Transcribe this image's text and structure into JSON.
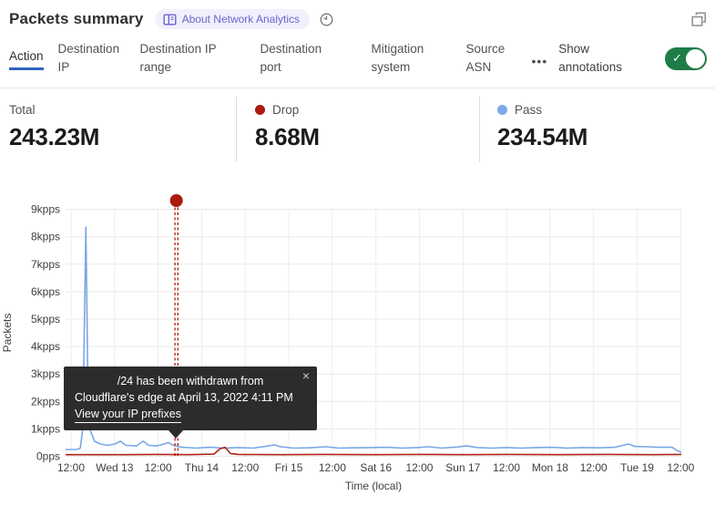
{
  "header": {
    "title": "Packets summary",
    "badge_label": "About Network Analytics",
    "badge_color": "#6b66cf"
  },
  "tabs": {
    "items": [
      {
        "id": "action",
        "label": "Action",
        "active": true
      },
      {
        "id": "destination-ip",
        "label": "Destination IP",
        "active": false
      },
      {
        "id": "destination-ip-range",
        "label": "Destination IP range",
        "active": false
      },
      {
        "id": "destination-port",
        "label": "Destination port",
        "active": false
      },
      {
        "id": "mitigation-system",
        "label": "Mitigation system",
        "active": false
      },
      {
        "id": "source-asn",
        "label": "Source ASN",
        "active": false
      }
    ],
    "more_label": "•••",
    "annotations_label": "Show annotations",
    "toggle_on": true,
    "toggle_color": "#1e7c46",
    "toggle_check": "✓"
  },
  "stats": {
    "total": {
      "label": "Total",
      "value": "243.23M"
    },
    "drop": {
      "label": "Drop",
      "value": "8.68M",
      "color": "#ad1a10"
    },
    "pass": {
      "label": "Pass",
      "value": "234.54M",
      "color": "#7caae8"
    }
  },
  "chart_data": {
    "type": "line",
    "ylabel": "Packets",
    "xlabel": "Time (local)",
    "ylim": [
      0,
      9
    ],
    "y_unit": "kpps",
    "grid": true,
    "y_ticks": [
      "0pps",
      "1kpps",
      "2kpps",
      "3kpps",
      "4kpps",
      "5kpps",
      "6kpps",
      "7kpps",
      "8kpps",
      "9kpps"
    ],
    "x_ticks": [
      "12:00",
      "Wed 13",
      "12:00",
      "Thu 14",
      "12:00",
      "Fri 15",
      "12:00",
      "Sat 16",
      "12:00",
      "Sun 17",
      "12:00",
      "Mon 18",
      "12:00",
      "Tue 19",
      "12:00"
    ],
    "series": [
      {
        "name": "Pass",
        "color": "#79a7e6",
        "points": [
          [
            0,
            0.25
          ],
          [
            0.018,
            0.25
          ],
          [
            0.024,
            0.3
          ],
          [
            0.028,
            1.0
          ],
          [
            0.033,
            8.35
          ],
          [
            0.037,
            1.2
          ],
          [
            0.041,
            0.9
          ],
          [
            0.047,
            0.55
          ],
          [
            0.056,
            0.45
          ],
          [
            0.068,
            0.4
          ],
          [
            0.08,
            0.45
          ],
          [
            0.089,
            0.55
          ],
          [
            0.098,
            0.4
          ],
          [
            0.115,
            0.38
          ],
          [
            0.126,
            0.55
          ],
          [
            0.135,
            0.4
          ],
          [
            0.148,
            0.38
          ],
          [
            0.16,
            0.45
          ],
          [
            0.167,
            0.5
          ],
          [
            0.175,
            0.4
          ],
          [
            0.189,
            0.33
          ],
          [
            0.212,
            0.3
          ],
          [
            0.234,
            0.33
          ],
          [
            0.256,
            0.3
          ],
          [
            0.281,
            0.32
          ],
          [
            0.305,
            0.3
          ],
          [
            0.33,
            0.38
          ],
          [
            0.339,
            0.42
          ],
          [
            0.349,
            0.35
          ],
          [
            0.37,
            0.3
          ],
          [
            0.396,
            0.31
          ],
          [
            0.423,
            0.35
          ],
          [
            0.444,
            0.3
          ],
          [
            0.47,
            0.31
          ],
          [
            0.497,
            0.32
          ],
          [
            0.522,
            0.33
          ],
          [
            0.547,
            0.3
          ],
          [
            0.571,
            0.32
          ],
          [
            0.589,
            0.35
          ],
          [
            0.611,
            0.3
          ],
          [
            0.636,
            0.34
          ],
          [
            0.651,
            0.38
          ],
          [
            0.669,
            0.32
          ],
          [
            0.692,
            0.3
          ],
          [
            0.716,
            0.32
          ],
          [
            0.74,
            0.3
          ],
          [
            0.766,
            0.32
          ],
          [
            0.79,
            0.33
          ],
          [
            0.814,
            0.3
          ],
          [
            0.84,
            0.32
          ],
          [
            0.867,
            0.31
          ],
          [
            0.892,
            0.33
          ],
          [
            0.914,
            0.45
          ],
          [
            0.925,
            0.36
          ],
          [
            0.944,
            0.35
          ],
          [
            0.964,
            0.33
          ],
          [
            0.985,
            0.33
          ],
          [
            0.994,
            0.2
          ],
          [
            1,
            0.15
          ]
        ]
      },
      {
        "name": "Drop",
        "color": "#b1241a",
        "points": [
          [
            0,
            0.06
          ],
          [
            0.1,
            0.06
          ],
          [
            0.15,
            0.07
          ],
          [
            0.2,
            0.06
          ],
          [
            0.241,
            0.08
          ],
          [
            0.251,
            0.28
          ],
          [
            0.259,
            0.33
          ],
          [
            0.268,
            0.1
          ],
          [
            0.28,
            0.07
          ],
          [
            0.35,
            0.06
          ],
          [
            0.42,
            0.07
          ],
          [
            0.5,
            0.06
          ],
          [
            0.58,
            0.07
          ],
          [
            0.65,
            0.06
          ],
          [
            0.72,
            0.07
          ],
          [
            0.8,
            0.06
          ],
          [
            0.88,
            0.07
          ],
          [
            0.95,
            0.06
          ],
          [
            1,
            0.07
          ]
        ]
      }
    ],
    "annotation": {
      "t": 0.18,
      "color": "#ad1a0e",
      "tooltip": {
        "line1": "/24 has been withdrawn from",
        "line2": "Cloudflare's edge at April 13, 2022 4:11 PM",
        "link": "View your IP prefixes",
        "close": "×"
      }
    }
  }
}
